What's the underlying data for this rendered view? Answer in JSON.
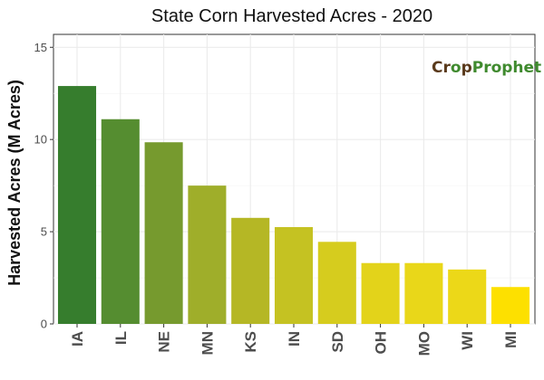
{
  "chart_data": {
    "type": "bar",
    "title": "State Corn Harvested Acres - 2020",
    "xlabel": "",
    "ylabel": "Harvested Acres (M Acres)",
    "categories": [
      "IA",
      "IL",
      "NE",
      "MN",
      "KS",
      "IN",
      "SD",
      "OH",
      "MO",
      "WI",
      "MI"
    ],
    "values": [
      12.9,
      11.1,
      9.85,
      7.5,
      5.75,
      5.25,
      4.45,
      3.3,
      3.3,
      2.95,
      2.0
    ],
    "bar_colors": [
      "#367d2d",
      "#558d30",
      "#769a2e",
      "#9fae2a",
      "#b5b725",
      "#c5c222",
      "#d6cc1e",
      "#e3d31a",
      "#e9d719",
      "#ecd818",
      "#fde000"
    ],
    "ylim": [
      0,
      15.7
    ],
    "yticks": [
      0,
      5,
      10,
      15
    ],
    "grid": true,
    "legend": "none"
  },
  "logo": {
    "text_part1": "Cr",
    "text_part2": "p",
    "text_part3": "Prophet",
    "brown": "#5a3a1c",
    "green": "#3f8a2e"
  }
}
